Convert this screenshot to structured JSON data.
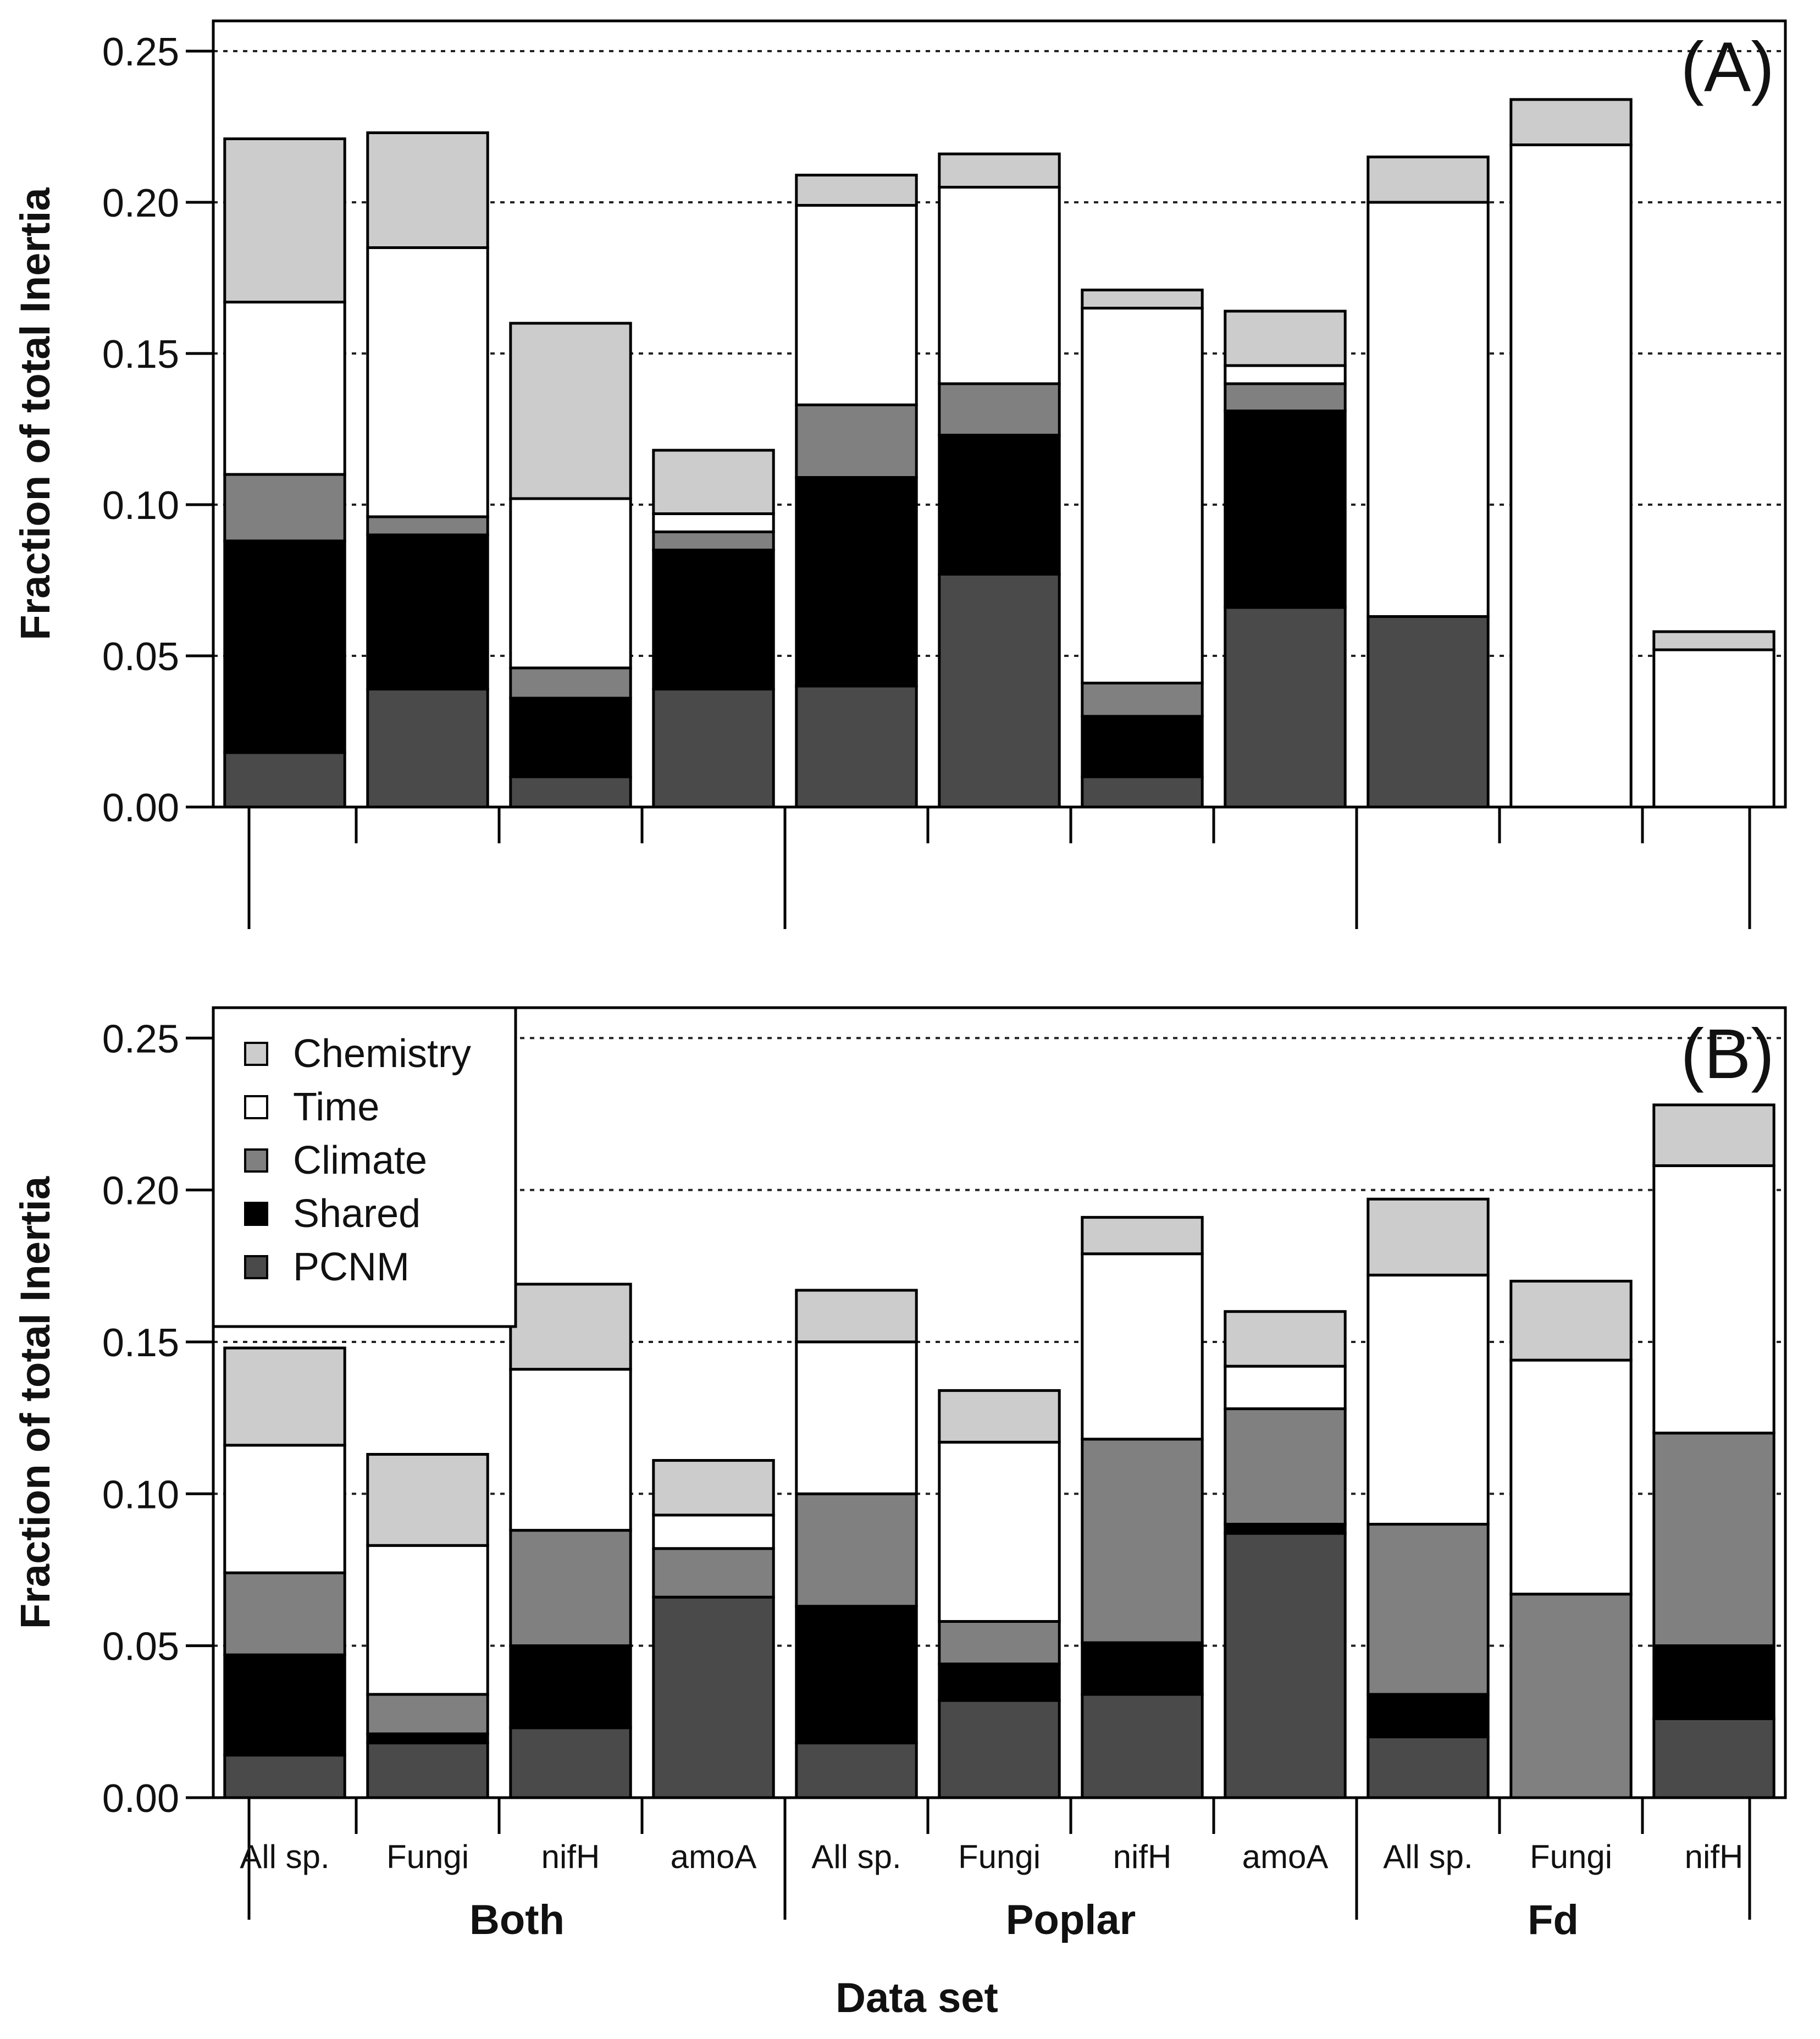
{
  "chart_data": {
    "type": "bar",
    "stacked": true,
    "xlabel": "Data set",
    "ylabel": "Fraction of total Inertia",
    "ylim": [
      0,
      0.26
    ],
    "yticks": [
      "0.00",
      "0.05",
      "0.10",
      "0.15",
      "0.20",
      "0.25"
    ],
    "gridlines_at": [
      0.05,
      0.1,
      0.15,
      0.2,
      0.25
    ],
    "categories": [
      "All sp.",
      "Fungi",
      "nifH",
      "amoA",
      "All sp.",
      "Fungi",
      "nifH",
      "amoA",
      "All sp.",
      "Fungi",
      "nifH"
    ],
    "groups": [
      {
        "label": "Both",
        "count": 4
      },
      {
        "label": "Poplar",
        "count": 4
      },
      {
        "label": "Fd",
        "count": 3
      }
    ],
    "legend": {
      "placement": "top-left of panel B",
      "entries": [
        "Chemistry",
        "Time",
        "Climate",
        "Shared",
        "PCNM"
      ]
    },
    "component_order": [
      "PCNM",
      "Shared",
      "Climate",
      "Time",
      "Chemistry"
    ],
    "colors": {
      "Chemistry": "#cccccc",
      "Time": "#ffffff",
      "Climate": "#808080",
      "Shared": "#000000",
      "PCNM": "#4a4a4a"
    },
    "panels": [
      {
        "tag": "(A)",
        "show_category_labels": false,
        "series": [
          {
            "name": "PCNM",
            "values": [
              0.018,
              0.039,
              0.01,
              0.039,
              0.04,
              0.077,
              0.01,
              0.066,
              0.063,
              0.0,
              0.0
            ]
          },
          {
            "name": "Shared",
            "values": [
              0.07,
              0.051,
              0.026,
              0.046,
              0.069,
              0.046,
              0.02,
              0.065,
              0.0,
              0.0,
              0.0
            ]
          },
          {
            "name": "Climate",
            "values": [
              0.022,
              0.006,
              0.01,
              0.006,
              0.024,
              0.017,
              0.011,
              0.009,
              0.0,
              0.0,
              0.0
            ]
          },
          {
            "name": "Time",
            "values": [
              0.057,
              0.089,
              0.056,
              0.006,
              0.066,
              0.065,
              0.124,
              0.006,
              0.137,
              0.219,
              0.052
            ]
          },
          {
            "name": "Chemistry",
            "values": [
              0.054,
              0.038,
              0.058,
              0.021,
              0.01,
              0.011,
              0.006,
              0.018,
              0.015,
              0.015,
              0.006
            ]
          }
        ]
      },
      {
        "tag": "(B)",
        "show_category_labels": true,
        "series": [
          {
            "name": "PCNM",
            "values": [
              0.014,
              0.018,
              0.023,
              0.066,
              0.018,
              0.032,
              0.034,
              0.087,
              0.02,
              0.0,
              0.026
            ]
          },
          {
            "name": "Shared",
            "values": [
              0.033,
              0.003,
              0.027,
              0.0,
              0.045,
              0.012,
              0.017,
              0.003,
              0.014,
              0.0,
              0.024
            ]
          },
          {
            "name": "Climate",
            "values": [
              0.027,
              0.013,
              0.038,
              0.016,
              0.037,
              0.014,
              0.067,
              0.038,
              0.056,
              0.067,
              0.07
            ]
          },
          {
            "name": "Time",
            "values": [
              0.042,
              0.049,
              0.053,
              0.011,
              0.05,
              0.059,
              0.061,
              0.014,
              0.082,
              0.077,
              0.088
            ]
          },
          {
            "name": "Chemistry",
            "values": [
              0.032,
              0.03,
              0.028,
              0.018,
              0.017,
              0.017,
              0.012,
              0.018,
              0.025,
              0.026,
              0.02
            ]
          }
        ]
      }
    ]
  }
}
